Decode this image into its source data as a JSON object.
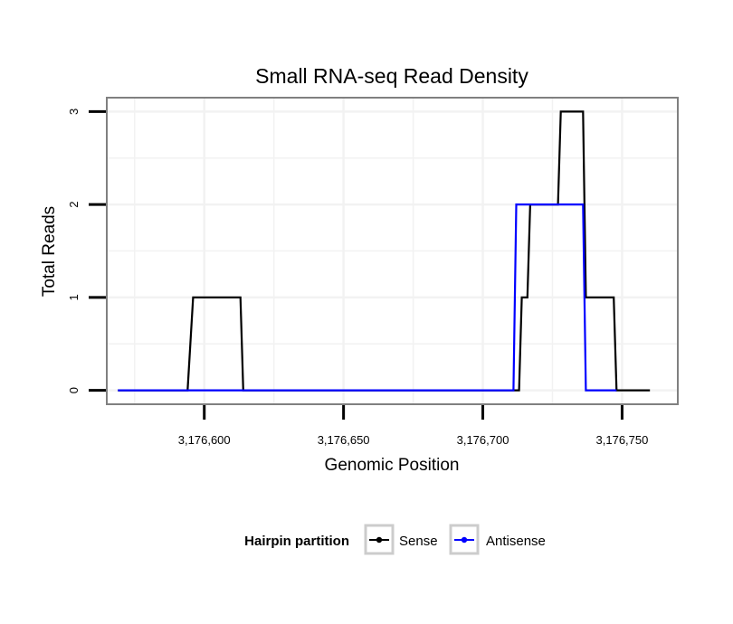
{
  "chart_data": {
    "type": "line",
    "title": "Small RNA-seq Read Density",
    "xlabel": "Genomic Position",
    "ylabel": "Total Reads",
    "xlim": [
      3176565,
      3176770
    ],
    "ylim": [
      -0.15,
      3.15
    ],
    "x_ticks": [
      3176600,
      3176650,
      3176700,
      3176750
    ],
    "x_tick_labels": [
      "3,176,600",
      "3,176,650",
      "3,176,700",
      "3,176,750"
    ],
    "y_ticks": [
      0,
      1,
      2,
      3
    ],
    "y_tick_labels": [
      "0",
      "1",
      "2",
      "3"
    ],
    "grid": true,
    "legend": {
      "title": "Hairpin partition",
      "position": "bottom",
      "entries": [
        "Sense",
        "Antisense"
      ]
    },
    "series": [
      {
        "name": "Sense",
        "color": "#000000",
        "x": [
          3176569,
          3176594,
          3176596,
          3176613,
          3176614,
          3176713,
          3176714,
          3176716,
          3176717,
          3176727,
          3176728,
          3176736,
          3176737,
          3176747,
          3176748,
          3176760
        ],
        "y": [
          0,
          0,
          1,
          1,
          0,
          0,
          1,
          1,
          2,
          2,
          3,
          3,
          1,
          1,
          0,
          0
        ]
      },
      {
        "name": "Antisense",
        "color": "#0000FF",
        "x": [
          3176569,
          3176711,
          3176712,
          3176736,
          3176737,
          3176748
        ],
        "y": [
          0,
          0,
          2,
          2,
          0,
          0
        ]
      }
    ]
  }
}
